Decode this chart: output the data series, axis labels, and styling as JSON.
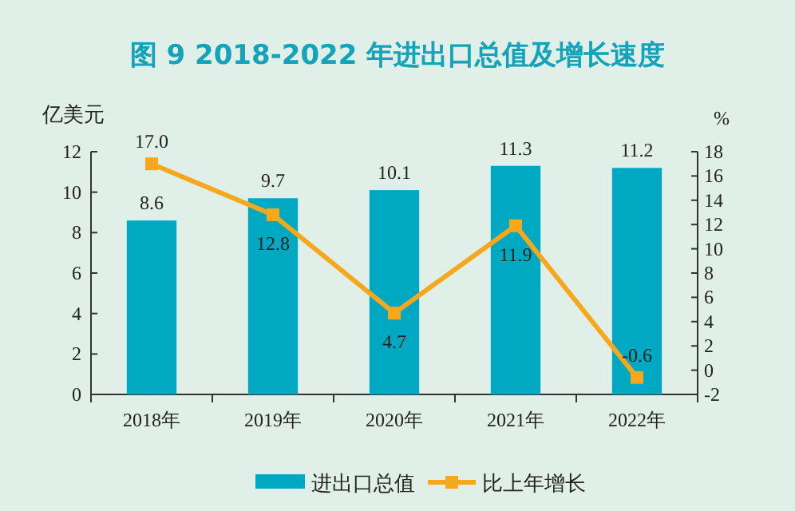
{
  "chart_data": {
    "type": "bar",
    "title": "图 9  2018-2022 年进出口总值及增长速度",
    "ylabel": "亿美元",
    "y2label": "%",
    "categories": [
      "2018年",
      "2019年",
      "2020年",
      "2021年",
      "2022年"
    ],
    "series": [
      {
        "name": "进出口总值",
        "color": "#00a9c1",
        "values": [
          8.6,
          9.7,
          10.1,
          11.3,
          11.2
        ]
      },
      {
        "name": "比上年增长",
        "type": "line",
        "axis": "y2",
        "color": "#f5a81c",
        "values": [
          17.0,
          12.8,
          4.7,
          11.9,
          -0.6
        ],
        "value_labels": [
          "17.0",
          "12.8",
          "4.7",
          "11.9",
          "-0.6"
        ]
      }
    ],
    "ylim": [
      0,
      12
    ],
    "yticks": [
      0,
      2,
      4,
      6,
      8,
      10,
      12
    ],
    "y2lim": [
      -2,
      18
    ],
    "y2ticks": [
      -2,
      0,
      2,
      4,
      6,
      8,
      10,
      12,
      14,
      16,
      18
    ],
    "data_labels": true,
    "legend": "bottom",
    "marker": "square",
    "grid": false
  }
}
